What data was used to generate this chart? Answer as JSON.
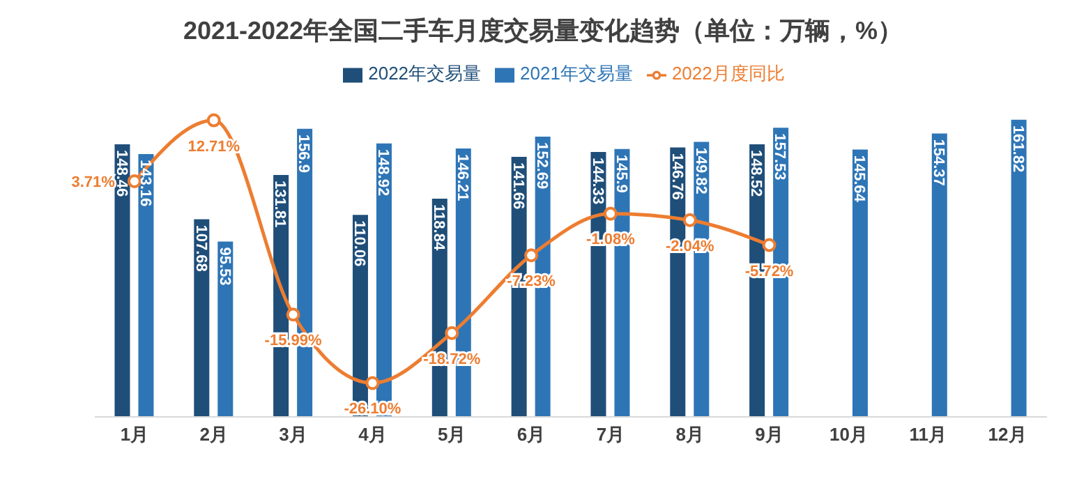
{
  "chart_data": {
    "type": "bar",
    "title": "2021-2022年全国二手车月度交易量变化趋势（单位：万辆，%）",
    "categories": [
      "1月",
      "2月",
      "3月",
      "4月",
      "5月",
      "6月",
      "7月",
      "8月",
      "9月",
      "10月",
      "11月",
      "12月"
    ],
    "series": [
      {
        "name": "2022年交易量",
        "color": "#1f4e79",
        "values": [
          148.46,
          107.68,
          131.81,
          110.06,
          118.84,
          141.66,
          144.33,
          146.76,
          148.52,
          null,
          null,
          null
        ]
      },
      {
        "name": "2021年交易量",
        "color": "#2e75b6",
        "values": [
          143.16,
          95.53,
          156.9,
          148.92,
          146.21,
          152.69,
          145.9,
          149.82,
          157.53,
          145.64,
          154.37,
          161.82
        ]
      },
      {
        "name": "2022月度同比",
        "type": "line",
        "axis": "y2",
        "color": "#ed7d31",
        "marker": "circle",
        "values": [
          3.71,
          12.71,
          -15.99,
          -26.1,
          -18.72,
          -7.23,
          -1.08,
          -2.04,
          -5.72,
          null,
          null,
          null
        ],
        "value_labels": [
          "3.71%",
          "12.71%",
          "-15.99%",
          "-26.10%",
          "-18.72%",
          "-7.23%",
          "-1.08%",
          "-2.04%",
          "-5.72%",
          null,
          null,
          null
        ]
      }
    ],
    "data_labels": true,
    "grid": false,
    "legend": "top",
    "tick_labels": "x"
  }
}
